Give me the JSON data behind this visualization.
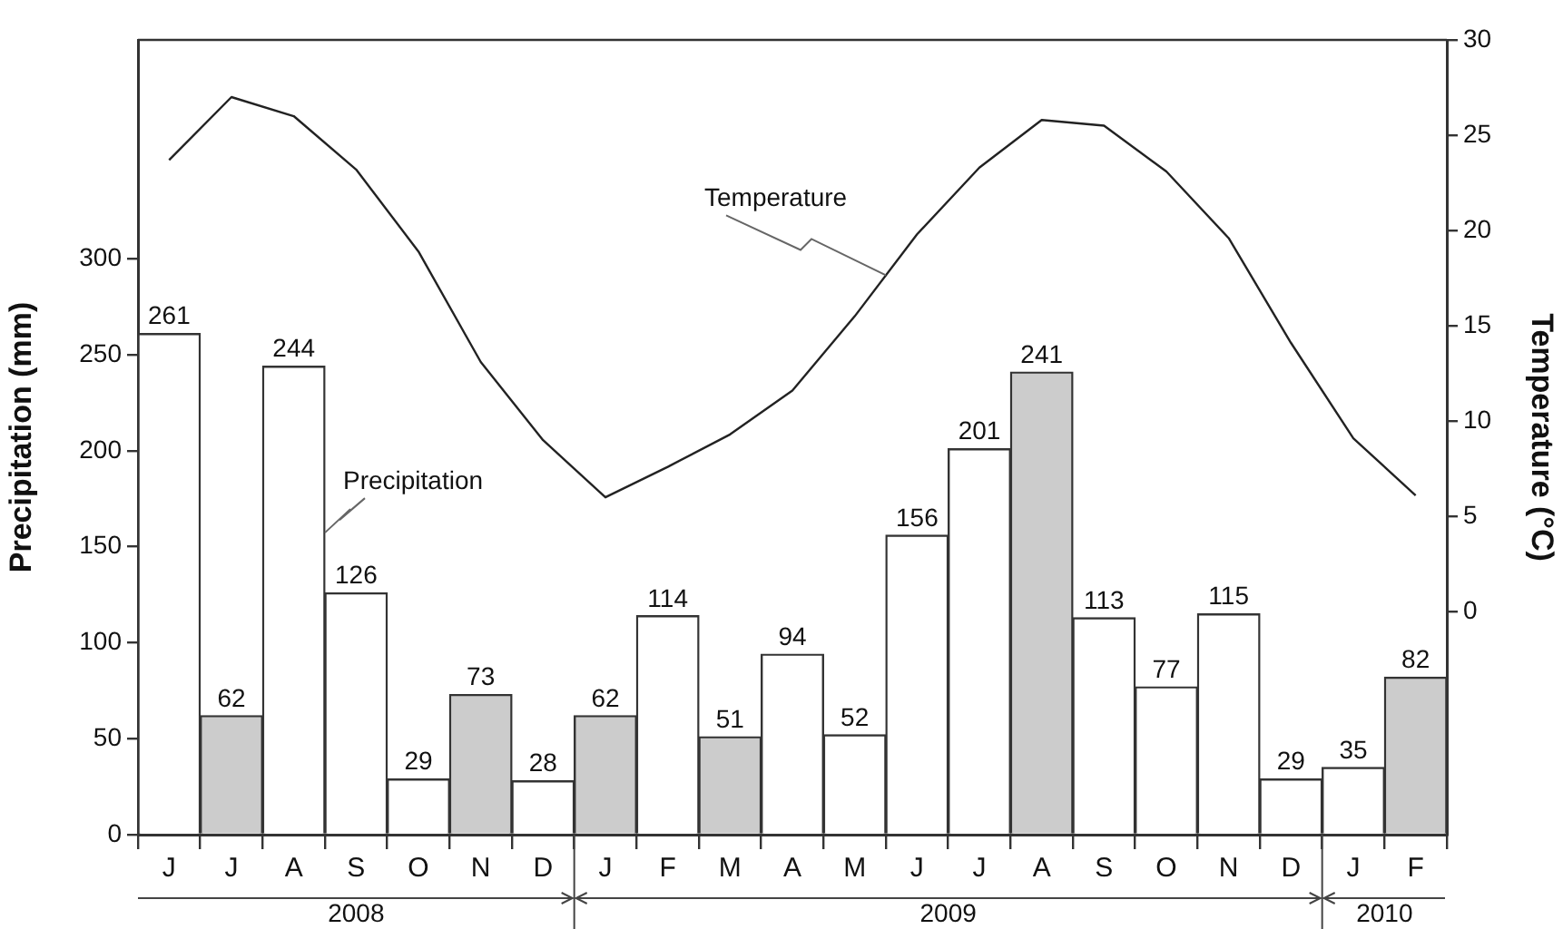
{
  "chart_data": {
    "type": "bar",
    "ylabel": "Precipitation (mm)",
    "y2label": "Temperature (°C)",
    "categories": [
      "J",
      "J",
      "A",
      "S",
      "O",
      "N",
      "D",
      "J",
      "F",
      "M",
      "A",
      "M",
      "J",
      "J",
      "A",
      "S",
      "O",
      "N",
      "D",
      "J",
      "F"
    ],
    "series": [
      {
        "name": "Precipitation",
        "value_labels": [
          "261",
          "62",
          "244",
          "126",
          "29",
          "73",
          "28",
          "62",
          "114",
          "51",
          "94",
          "52",
          "156",
          "201",
          "241",
          "113",
          "77",
          "115",
          "29",
          "35",
          "82"
        ],
        "colors": [
          "#ffffff",
          "#cccccc",
          "#ffffff",
          "#ffffff",
          "#ffffff",
          "#cccccc",
          "#ffffff",
          "#cccccc",
          "#ffffff",
          "#cccccc",
          "#ffffff",
          "#ffffff",
          "#ffffff",
          "#ffffff",
          "#cccccc",
          "#ffffff",
          "#ffffff",
          "#ffffff",
          "#ffffff",
          "#ffffff",
          "#cccccc"
        ],
        "values": [
          261,
          62,
          244,
          126,
          29,
          73,
          28,
          62,
          114,
          51,
          94,
          52,
          156,
          201,
          241,
          113,
          77,
          115,
          29,
          35,
          82
        ]
      },
      {
        "name": "Temperature",
        "type": "line",
        "axis": "y2",
        "color": "#222222",
        "values": [
          23.7,
          27.0,
          26.0,
          23.2,
          18.9,
          13.1,
          9.0,
          6.0,
          7.6,
          9.3,
          11.6,
          15.5,
          19.8,
          23.3,
          25.8,
          25.5,
          23.1,
          19.6,
          14.1,
          9.1,
          6.1
        ]
      }
    ],
    "ylim": [
      0,
      414
    ],
    "yticks": [
      0,
      50,
      100,
      150,
      200,
      250,
      300
    ],
    "y2lim": [
      -11.7,
      30
    ],
    "y2ticks": [
      0,
      5,
      10,
      15,
      20,
      25,
      30
    ],
    "grid": false,
    "legend": false,
    "marker": "none",
    "line_style": "solid",
    "annotations": [
      "2008",
      "2009",
      "2010"
    ]
  }
}
